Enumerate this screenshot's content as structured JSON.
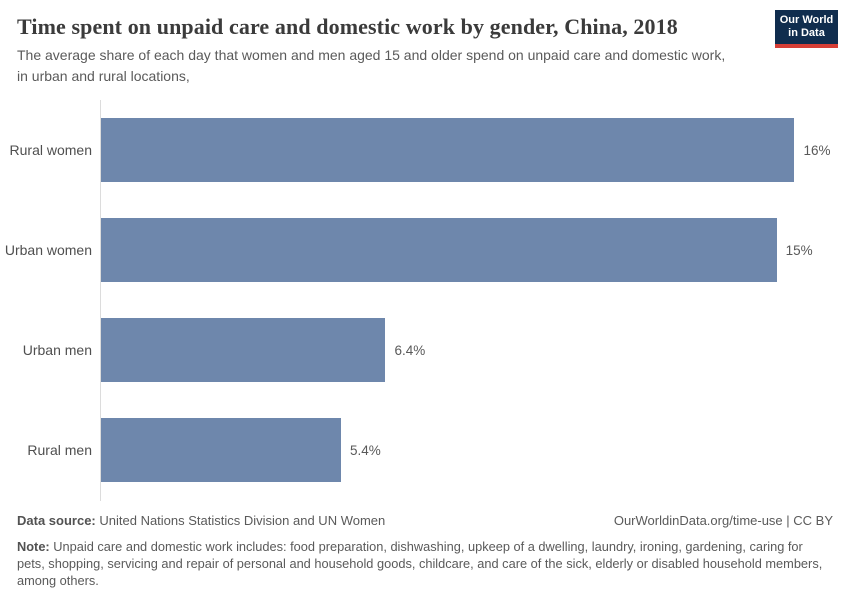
{
  "chart_data": {
    "type": "bar",
    "orientation": "horizontal",
    "title": "Time spent on unpaid care and domestic work by gender, China, 2018",
    "subtitle": "The average share of each day that women and men aged 15 and older spend on unpaid care and domestic work, in urban and rural locations,",
    "categories": [
      "Rural women",
      "Urban women",
      "Urban men",
      "Rural men"
    ],
    "values": [
      15.6,
      15.2,
      6.4,
      5.4
    ],
    "value_labels": [
      "16%",
      "15%",
      "6.4%",
      "5.4%"
    ],
    "unit": "%",
    "xlim": [
      0,
      16.4
    ],
    "grid": false,
    "legend": "none",
    "bar_color": "#6e87ac"
  },
  "logo": {
    "line1": "Our World",
    "line2": "in Data"
  },
  "footer": {
    "source_label": "Data source:",
    "source_text": "United Nations Statistics Division and UN Women",
    "attribution": "OurWorldinData.org/time-use | CC BY",
    "note_label": "Note:",
    "note_text": "Unpaid care and domestic work includes: food preparation, dishwashing, upkeep of a dwelling, laundry, ironing, gardening, caring for pets, shopping, servicing and repair of personal and household goods, childcare, and care of the sick, elderly or disabled household members, among others."
  },
  "colors": {
    "bar": "#6e87ac",
    "axis_line": "#dcdcdc",
    "title_text": "#3b3b3b",
    "body_text": "#5a5a5a",
    "logo_bg": "#102d4e",
    "logo_accent": "#d63e36"
  }
}
